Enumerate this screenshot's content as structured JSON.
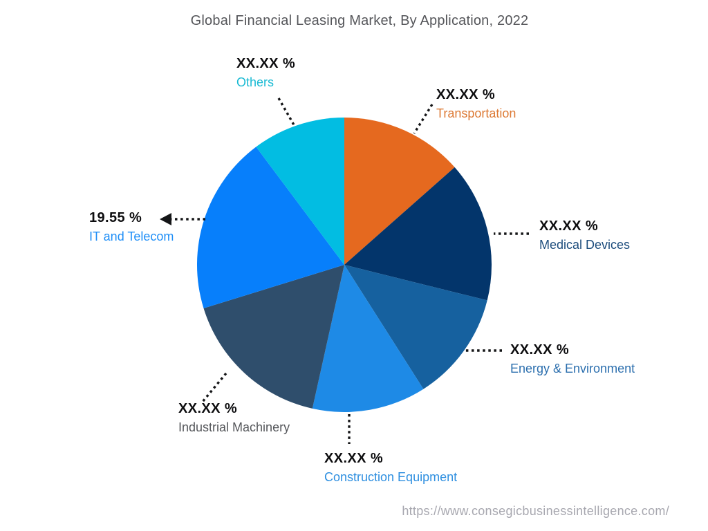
{
  "page": {
    "title": "Global Financial Leasing Market, By Application, 2022",
    "source_url": "https://www.consegicbusinessintelligence.com/"
  },
  "chart_data": {
    "type": "pie",
    "title": "Global Financial Leasing Market, By Application, 2022",
    "start_angle_deg": 0,
    "direction": "clockwise",
    "legend_position": "callout-labels-around-pie",
    "slices": [
      {
        "name": "Transportation",
        "display_value": "XX.XX %",
        "percent": 13.48,
        "color": "#E5691F",
        "label_color": "#DD7A35"
      },
      {
        "name": "Medical Devices",
        "display_value": "XX.XX %",
        "percent": 15.4,
        "color": "#03356B",
        "label_color": "#1C4C7C"
      },
      {
        "name": "Energy & Environment",
        "display_value": "XX.XX %",
        "percent": 12.1,
        "color": "#16619F",
        "label_color": "#2C6FAE"
      },
      {
        "name": "Construction Equipment",
        "display_value": "XX.XX %",
        "percent": 12.5,
        "color": "#1E8AE6",
        "label_color": "#2E8FE0"
      },
      {
        "name": "Industrial Machinery",
        "display_value": "XX.XX %",
        "percent": 16.75,
        "color": "#2F4E6C",
        "label_color": "#55575B"
      },
      {
        "name": "IT and Telecom",
        "display_value": "19.55 %",
        "percent": 19.55,
        "color": "#077FFB",
        "label_color": "#1E8EF7"
      },
      {
        "name": "Others",
        "display_value": "XX.XX %",
        "percent": 10.22,
        "color": "#02BDE2",
        "label_color": "#19BAD3"
      }
    ]
  }
}
